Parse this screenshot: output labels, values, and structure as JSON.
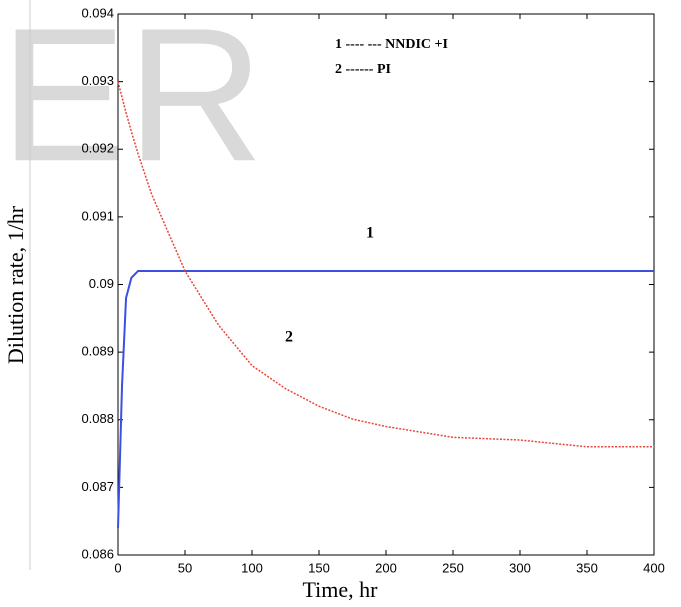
{
  "watermark": "ER",
  "chart_data": {
    "type": "line",
    "x_label": "Time, hr",
    "y_label": "Dilution rate, 1/hr",
    "x": [
      0,
      3,
      6,
      10,
      15,
      25,
      50,
      75,
      100,
      125,
      150,
      175,
      200,
      250,
      300,
      350,
      400
    ],
    "series": [
      {
        "name": "NNDIC +I",
        "legend_label": "1 ---- --- NNDIC +I",
        "curve_label": "1",
        "color": "#3b4fe0",
        "dash": false,
        "values": [
          0.0864,
          0.0885,
          0.0898,
          0.0901,
          0.0902,
          0.0902,
          0.0902,
          0.0902,
          0.0902,
          0.0902,
          0.0902,
          0.0902,
          0.0902,
          0.0902,
          0.0902,
          0.0902,
          0.0902
        ]
      },
      {
        "name": "PI",
        "legend_label": "2 ------ PI",
        "curve_label": "2",
        "color": "#e8453c",
        "dash": true,
        "values": [
          0.093,
          0.09277,
          0.09254,
          0.09226,
          0.09193,
          0.09134,
          0.0902,
          0.0894,
          0.0888,
          0.08846,
          0.0882,
          0.08801,
          0.0879,
          0.08774,
          0.0877,
          0.0876,
          0.0876
        ]
      }
    ],
    "xlim": [
      0,
      400
    ],
    "xticks": [
      0,
      50,
      100,
      150,
      200,
      250,
      300,
      350,
      400
    ],
    "ylim": [
      0.086,
      0.094
    ],
    "yticks": [
      0.086,
      0.087,
      0.088,
      0.089,
      0.09,
      0.091,
      0.092,
      0.093,
      0.094
    ]
  }
}
